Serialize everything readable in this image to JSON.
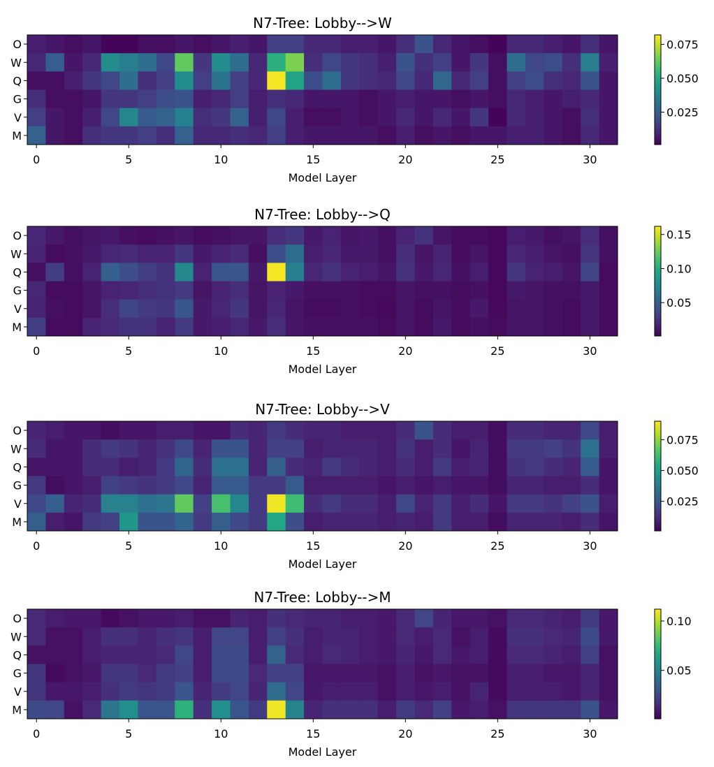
{
  "chart_data": [
    {
      "type": "heatmap",
      "title": "N7-Tree: Lobby-->W",
      "xlabel": "Model Layer",
      "ylabel": "",
      "rows": [
        "O",
        "W",
        "Q",
        "G",
        "V",
        "M"
      ],
      "x": [
        0,
        1,
        2,
        3,
        4,
        5,
        6,
        7,
        8,
        9,
        10,
        11,
        12,
        13,
        14,
        15,
        16,
        17,
        18,
        19,
        20,
        21,
        22,
        23,
        24,
        25,
        26,
        27,
        28,
        29,
        30,
        31
      ],
      "xticks": [
        0,
        5,
        10,
        15,
        20,
        25,
        30
      ],
      "colorbar": {
        "range": [
          0.001,
          0.082
        ],
        "ticks": [
          0.025,
          0.05,
          0.075
        ],
        "tick_labels": [
          "0.025",
          "0.050",
          "0.075"
        ]
      },
      "values": [
        [
          0.008,
          0.006,
          0.004,
          0.006,
          0.002,
          0.002,
          0.004,
          0.004,
          0.006,
          0.004,
          0.006,
          0.008,
          0.006,
          0.016,
          0.016,
          0.01,
          0.01,
          0.008,
          0.008,
          0.006,
          0.012,
          0.022,
          0.01,
          0.006,
          0.004,
          0.002,
          0.01,
          0.01,
          0.008,
          0.006,
          0.012,
          0.006
        ],
        [
          0.01,
          0.025,
          0.006,
          0.01,
          0.04,
          0.035,
          0.03,
          0.018,
          0.062,
          0.014,
          0.04,
          0.03,
          0.01,
          0.052,
          0.066,
          0.012,
          0.018,
          0.014,
          0.012,
          0.008,
          0.022,
          0.012,
          0.016,
          0.006,
          0.014,
          0.004,
          0.03,
          0.018,
          0.02,
          0.012,
          0.035,
          0.008
        ],
        [
          0.004,
          0.004,
          0.008,
          0.014,
          0.018,
          0.03,
          0.012,
          0.016,
          0.04,
          0.016,
          0.032,
          0.016,
          0.01,
          0.081,
          0.048,
          0.02,
          0.03,
          0.014,
          0.012,
          0.01,
          0.018,
          0.01,
          0.028,
          0.01,
          0.016,
          0.004,
          0.016,
          0.02,
          0.012,
          0.01,
          0.022,
          0.006
        ],
        [
          0.012,
          0.004,
          0.004,
          0.006,
          0.014,
          0.014,
          0.016,
          0.02,
          0.022,
          0.008,
          0.01,
          0.016,
          0.008,
          0.012,
          0.01,
          0.006,
          0.006,
          0.006,
          0.004,
          0.006,
          0.008,
          0.006,
          0.006,
          0.004,
          0.006,
          0.004,
          0.01,
          0.008,
          0.006,
          0.008,
          0.01,
          0.006
        ],
        [
          0.016,
          0.006,
          0.004,
          0.008,
          0.018,
          0.038,
          0.024,
          0.026,
          0.036,
          0.012,
          0.014,
          0.026,
          0.008,
          0.018,
          0.008,
          0.004,
          0.004,
          0.006,
          0.004,
          0.006,
          0.01,
          0.006,
          0.01,
          0.006,
          0.014,
          0.002,
          0.01,
          0.008,
          0.006,
          0.004,
          0.012,
          0.006
        ],
        [
          0.026,
          0.006,
          0.004,
          0.012,
          0.014,
          0.014,
          0.016,
          0.012,
          0.026,
          0.01,
          0.01,
          0.012,
          0.01,
          0.016,
          0.008,
          0.006,
          0.006,
          0.006,
          0.006,
          0.004,
          0.008,
          0.004,
          0.006,
          0.004,
          0.006,
          0.006,
          0.008,
          0.008,
          0.006,
          0.004,
          0.01,
          0.006
        ]
      ]
    },
    {
      "type": "heatmap",
      "title": "N7-Tree: Lobby-->Q",
      "xlabel": "Model Layer",
      "ylabel": "",
      "rows": [
        "O",
        "W",
        "Q",
        "G",
        "V",
        "M"
      ],
      "x": [
        0,
        1,
        2,
        3,
        4,
        5,
        6,
        7,
        8,
        9,
        10,
        11,
        12,
        13,
        14,
        15,
        16,
        17,
        18,
        19,
        20,
        21,
        22,
        23,
        24,
        25,
        26,
        27,
        28,
        29,
        30,
        31
      ],
      "xticks": [
        0,
        5,
        10,
        15,
        20,
        25,
        30
      ],
      "colorbar": {
        "range": [
          0.001,
          0.162
        ],
        "ticks": [
          0.05,
          0.1,
          0.15
        ],
        "tick_labels": [
          "0.05",
          "0.10",
          "0.15"
        ]
      },
      "values": [
        [
          0.018,
          0.012,
          0.008,
          0.01,
          0.012,
          0.008,
          0.006,
          0.008,
          0.01,
          0.006,
          0.008,
          0.01,
          0.01,
          0.022,
          0.026,
          0.012,
          0.016,
          0.01,
          0.012,
          0.008,
          0.016,
          0.024,
          0.01,
          0.006,
          0.006,
          0.004,
          0.014,
          0.012,
          0.008,
          0.01,
          0.022,
          0.008
        ],
        [
          0.016,
          0.006,
          0.008,
          0.012,
          0.018,
          0.02,
          0.016,
          0.016,
          0.026,
          0.012,
          0.016,
          0.02,
          0.008,
          0.04,
          0.058,
          0.014,
          0.018,
          0.012,
          0.012,
          0.008,
          0.022,
          0.01,
          0.016,
          0.006,
          0.01,
          0.004,
          0.018,
          0.014,
          0.01,
          0.008,
          0.026,
          0.008
        ],
        [
          0.008,
          0.03,
          0.008,
          0.016,
          0.05,
          0.04,
          0.03,
          0.024,
          0.076,
          0.016,
          0.044,
          0.044,
          0.012,
          0.16,
          0.07,
          0.018,
          0.024,
          0.016,
          0.014,
          0.01,
          0.024,
          0.012,
          0.018,
          0.008,
          0.014,
          0.004,
          0.026,
          0.016,
          0.014,
          0.01,
          0.034,
          0.006
        ],
        [
          0.018,
          0.006,
          0.006,
          0.01,
          0.016,
          0.018,
          0.022,
          0.024,
          0.028,
          0.01,
          0.016,
          0.022,
          0.01,
          0.016,
          0.012,
          0.008,
          0.008,
          0.008,
          0.006,
          0.006,
          0.01,
          0.008,
          0.008,
          0.006,
          0.008,
          0.004,
          0.012,
          0.01,
          0.008,
          0.008,
          0.012,
          0.006
        ],
        [
          0.016,
          0.008,
          0.006,
          0.01,
          0.022,
          0.034,
          0.028,
          0.026,
          0.044,
          0.012,
          0.018,
          0.026,
          0.01,
          0.018,
          0.01,
          0.006,
          0.006,
          0.008,
          0.006,
          0.004,
          0.01,
          0.006,
          0.01,
          0.006,
          0.012,
          0.004,
          0.01,
          0.01,
          0.008,
          0.006,
          0.012,
          0.006
        ],
        [
          0.03,
          0.006,
          0.006,
          0.016,
          0.02,
          0.024,
          0.024,
          0.016,
          0.028,
          0.012,
          0.014,
          0.018,
          0.012,
          0.022,
          0.01,
          0.008,
          0.008,
          0.008,
          0.008,
          0.006,
          0.01,
          0.006,
          0.012,
          0.006,
          0.008,
          0.006,
          0.01,
          0.01,
          0.008,
          0.006,
          0.012,
          0.006
        ]
      ]
    },
    {
      "type": "heatmap",
      "title": "N7-Tree: Lobby-->V",
      "xlabel": "Model Layer",
      "ylabel": "",
      "rows": [
        "O",
        "W",
        "Q",
        "G",
        "V",
        "M"
      ],
      "x": [
        0,
        1,
        2,
        3,
        4,
        5,
        6,
        7,
        8,
        9,
        10,
        11,
        12,
        13,
        14,
        15,
        16,
        17,
        18,
        19,
        20,
        21,
        22,
        23,
        24,
        25,
        26,
        27,
        28,
        29,
        30,
        31
      ],
      "xticks": [
        0,
        5,
        10,
        15,
        20,
        25,
        30
      ],
      "colorbar": {
        "range": [
          0.001,
          0.09
        ],
        "ticks": [
          0.025,
          0.05,
          0.075
        ],
        "tick_labels": [
          "0.025",
          "0.050",
          "0.075"
        ]
      },
      "values": [
        [
          0.01,
          0.008,
          0.006,
          0.006,
          0.004,
          0.006,
          0.006,
          0.008,
          0.008,
          0.006,
          0.006,
          0.012,
          0.01,
          0.016,
          0.012,
          0.01,
          0.01,
          0.008,
          0.008,
          0.008,
          0.012,
          0.024,
          0.012,
          0.008,
          0.008,
          0.004,
          0.012,
          0.012,
          0.01,
          0.01,
          0.02,
          0.008
        ],
        [
          0.012,
          0.006,
          0.006,
          0.012,
          0.016,
          0.014,
          0.01,
          0.014,
          0.02,
          0.01,
          0.024,
          0.024,
          0.01,
          0.018,
          0.018,
          0.008,
          0.01,
          0.01,
          0.01,
          0.008,
          0.014,
          0.008,
          0.012,
          0.006,
          0.01,
          0.004,
          0.016,
          0.016,
          0.018,
          0.014,
          0.034,
          0.008
        ],
        [
          0.006,
          0.006,
          0.006,
          0.012,
          0.012,
          0.008,
          0.01,
          0.016,
          0.03,
          0.012,
          0.034,
          0.034,
          0.01,
          0.028,
          0.012,
          0.01,
          0.016,
          0.012,
          0.01,
          0.008,
          0.012,
          0.008,
          0.016,
          0.008,
          0.01,
          0.004,
          0.014,
          0.016,
          0.012,
          0.01,
          0.026,
          0.006
        ],
        [
          0.016,
          0.004,
          0.006,
          0.008,
          0.018,
          0.016,
          0.014,
          0.016,
          0.02,
          0.01,
          0.026,
          0.026,
          0.016,
          0.016,
          0.026,
          0.008,
          0.008,
          0.008,
          0.008,
          0.006,
          0.008,
          0.006,
          0.008,
          0.006,
          0.006,
          0.004,
          0.01,
          0.01,
          0.008,
          0.008,
          0.012,
          0.006
        ],
        [
          0.02,
          0.028,
          0.01,
          0.012,
          0.04,
          0.04,
          0.034,
          0.036,
          0.068,
          0.018,
          0.064,
          0.042,
          0.016,
          0.088,
          0.062,
          0.012,
          0.016,
          0.012,
          0.012,
          0.008,
          0.02,
          0.01,
          0.016,
          0.008,
          0.012,
          0.006,
          0.016,
          0.016,
          0.014,
          0.018,
          0.024,
          0.008
        ],
        [
          0.028,
          0.008,
          0.006,
          0.016,
          0.018,
          0.048,
          0.024,
          0.024,
          0.03,
          0.016,
          0.028,
          0.02,
          0.016,
          0.054,
          0.022,
          0.008,
          0.01,
          0.01,
          0.01,
          0.008,
          0.01,
          0.008,
          0.016,
          0.008,
          0.008,
          0.004,
          0.01,
          0.01,
          0.01,
          0.008,
          0.012,
          0.006
        ]
      ]
    },
    {
      "type": "heatmap",
      "title": "N7-Tree: Lobby-->M",
      "xlabel": "Model Layer",
      "ylabel": "",
      "rows": [
        "O",
        "W",
        "Q",
        "G",
        "V",
        "M"
      ],
      "x": [
        0,
        1,
        2,
        3,
        4,
        5,
        6,
        7,
        8,
        9,
        10,
        11,
        12,
        13,
        14,
        15,
        16,
        17,
        18,
        19,
        20,
        21,
        22,
        23,
        24,
        25,
        26,
        27,
        28,
        29,
        30,
        31
      ],
      "xticks": [
        0,
        5,
        10,
        15,
        20,
        25,
        30
      ],
      "colorbar": {
        "range": [
          0.001,
          0.112
        ],
        "ticks": [
          0.05,
          0.1
        ],
        "tick_labels": [
          "0.05",
          "0.10"
        ]
      },
      "values": [
        [
          0.014,
          0.01,
          0.008,
          0.008,
          0.004,
          0.006,
          0.008,
          0.008,
          0.01,
          0.006,
          0.006,
          0.012,
          0.01,
          0.016,
          0.014,
          0.012,
          0.012,
          0.01,
          0.01,
          0.008,
          0.014,
          0.024,
          0.012,
          0.008,
          0.008,
          0.006,
          0.014,
          0.014,
          0.012,
          0.01,
          0.02,
          0.008
        ],
        [
          0.014,
          0.006,
          0.006,
          0.01,
          0.016,
          0.016,
          0.012,
          0.016,
          0.018,
          0.01,
          0.024,
          0.024,
          0.01,
          0.022,
          0.016,
          0.01,
          0.012,
          0.012,
          0.01,
          0.008,
          0.014,
          0.01,
          0.014,
          0.006,
          0.01,
          0.004,
          0.016,
          0.016,
          0.014,
          0.012,
          0.026,
          0.008
        ],
        [
          0.006,
          0.006,
          0.006,
          0.01,
          0.012,
          0.012,
          0.012,
          0.014,
          0.024,
          0.01,
          0.026,
          0.026,
          0.01,
          0.036,
          0.014,
          0.01,
          0.014,
          0.012,
          0.01,
          0.008,
          0.012,
          0.008,
          0.014,
          0.008,
          0.01,
          0.004,
          0.014,
          0.014,
          0.012,
          0.01,
          0.022,
          0.006
        ],
        [
          0.018,
          0.004,
          0.006,
          0.008,
          0.018,
          0.018,
          0.014,
          0.02,
          0.022,
          0.01,
          0.026,
          0.026,
          0.014,
          0.022,
          0.022,
          0.008,
          0.008,
          0.008,
          0.008,
          0.006,
          0.01,
          0.006,
          0.008,
          0.006,
          0.006,
          0.004,
          0.01,
          0.01,
          0.008,
          0.008,
          0.012,
          0.006
        ],
        [
          0.018,
          0.008,
          0.008,
          0.01,
          0.016,
          0.02,
          0.018,
          0.02,
          0.03,
          0.012,
          0.02,
          0.024,
          0.012,
          0.04,
          0.024,
          0.008,
          0.01,
          0.01,
          0.01,
          0.006,
          0.01,
          0.008,
          0.01,
          0.006,
          0.012,
          0.004,
          0.01,
          0.01,
          0.01,
          0.008,
          0.012,
          0.006
        ],
        [
          0.026,
          0.024,
          0.006,
          0.014,
          0.044,
          0.056,
          0.03,
          0.03,
          0.072,
          0.016,
          0.056,
          0.03,
          0.02,
          0.11,
          0.05,
          0.012,
          0.016,
          0.016,
          0.016,
          0.01,
          0.02,
          0.014,
          0.022,
          0.008,
          0.01,
          0.006,
          0.018,
          0.018,
          0.018,
          0.018,
          0.028,
          0.008
        ]
      ]
    }
  ]
}
